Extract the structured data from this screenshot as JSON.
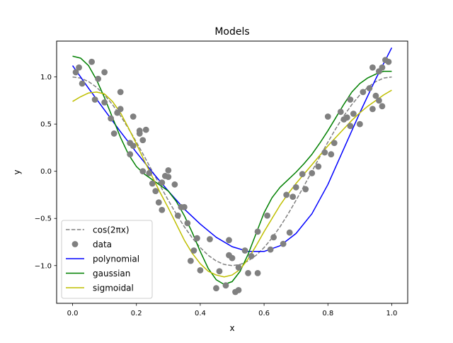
{
  "chart_data": {
    "type": "line",
    "title": "Models",
    "xlabel": "x",
    "ylabel": "y",
    "xlim": [
      -0.05,
      1.05
    ],
    "ylim": [
      -1.4,
      1.38
    ],
    "xticks": [
      0.0,
      0.2,
      0.4,
      0.6,
      0.8,
      1.0
    ],
    "xtick_labels": [
      "0.0",
      "0.2",
      "0.4",
      "0.6",
      "0.8",
      "1.0"
    ],
    "yticks": [
      -1.0,
      -0.5,
      0.0,
      0.5,
      1.0
    ],
    "ytick_labels": [
      "−1.0",
      "−0.5",
      "0.0",
      "0.5",
      "1.0"
    ],
    "grid": false,
    "legend_position": "lower-left",
    "legend": [
      {
        "label": "cos(2πx)",
        "kind": "dashed",
        "color": "#808080"
      },
      {
        "label": "data",
        "kind": "marker",
        "color": "#808080"
      },
      {
        "label": "polynomial",
        "kind": "line",
        "color": "#0000ff"
      },
      {
        "label": "gaussian",
        "kind": "line",
        "color": "#008000"
      },
      {
        "label": "sigmoidal",
        "kind": "line",
        "color": "#bfbf00"
      }
    ],
    "scatter": {
      "name": "data",
      "color": "#808080",
      "points": [
        [
          0.01,
          1.05
        ],
        [
          0.02,
          1.1
        ],
        [
          0.03,
          0.93
        ],
        [
          0.06,
          1.16
        ],
        [
          0.07,
          0.76
        ],
        [
          0.08,
          0.98
        ],
        [
          0.1,
          1.05
        ],
        [
          0.1,
          0.73
        ],
        [
          0.12,
          0.56
        ],
        [
          0.13,
          0.4
        ],
        [
          0.14,
          0.62
        ],
        [
          0.15,
          0.84
        ],
        [
          0.15,
          0.66
        ],
        [
          0.18,
          0.18
        ],
        [
          0.18,
          0.3
        ],
        [
          0.19,
          0.58
        ],
        [
          0.19,
          0.27
        ],
        [
          0.21,
          0.43
        ],
        [
          0.21,
          0.4
        ],
        [
          0.22,
          0.33
        ],
        [
          0.22,
          0.0
        ],
        [
          0.23,
          0.44
        ],
        [
          0.24,
          -0.02
        ],
        [
          0.25,
          -0.13
        ],
        [
          0.26,
          -0.21
        ],
        [
          0.27,
          -0.33
        ],
        [
          0.28,
          -0.41
        ],
        [
          0.28,
          -0.12
        ],
        [
          0.29,
          -0.05
        ],
        [
          0.3,
          0.01
        ],
        [
          0.3,
          -0.06
        ],
        [
          0.32,
          -0.14
        ],
        [
          0.33,
          -0.47
        ],
        [
          0.34,
          -0.38
        ],
        [
          0.35,
          -0.38
        ],
        [
          0.36,
          -0.55
        ],
        [
          0.37,
          -0.95
        ],
        [
          0.38,
          -0.84
        ],
        [
          0.39,
          -0.71
        ],
        [
          0.4,
          -1.05
        ],
        [
          0.43,
          -0.72
        ],
        [
          0.45,
          -1.24
        ],
        [
          0.46,
          -1.06
        ],
        [
          0.48,
          -1.21
        ],
        [
          0.49,
          -0.73
        ],
        [
          0.49,
          -0.89
        ],
        [
          0.5,
          -0.92
        ],
        [
          0.51,
          -1.28
        ],
        [
          0.52,
          -1.26
        ],
        [
          0.52,
          -1.02
        ],
        [
          0.54,
          -0.84
        ],
        [
          0.55,
          -1.08
        ],
        [
          0.56,
          -0.9
        ],
        [
          0.58,
          -1.08
        ],
        [
          0.58,
          -0.64
        ],
        [
          0.61,
          -0.47
        ],
        [
          0.62,
          -0.83
        ],
        [
          0.63,
          -0.7
        ],
        [
          0.66,
          -0.77
        ],
        [
          0.67,
          -0.25
        ],
        [
          0.68,
          -0.65
        ],
        [
          0.69,
          -0.27
        ],
        [
          0.7,
          -0.17
        ],
        [
          0.72,
          -0.03
        ],
        [
          0.73,
          -0.19
        ],
        [
          0.75,
          -0.02
        ],
        [
          0.77,
          0.05
        ],
        [
          0.79,
          0.2
        ],
        [
          0.8,
          0.58
        ],
        [
          0.81,
          0.18
        ],
        [
          0.82,
          0.3
        ],
        [
          0.84,
          0.63
        ],
        [
          0.85,
          0.55
        ],
        [
          0.86,
          0.57
        ],
        [
          0.87,
          0.48
        ],
        [
          0.87,
          0.76
        ],
        [
          0.88,
          0.61
        ],
        [
          0.9,
          0.5
        ],
        [
          0.91,
          0.84
        ],
        [
          0.93,
          0.88
        ],
        [
          0.94,
          0.66
        ],
        [
          0.94,
          1.1
        ],
        [
          0.95,
          0.8
        ],
        [
          0.96,
          1.06
        ],
        [
          0.96,
          0.75
        ],
        [
          0.97,
          0.69
        ],
        [
          0.97,
          1.1
        ],
        [
          0.98,
          1.18
        ],
        [
          0.99,
          1.16
        ]
      ]
    },
    "series": [
      {
        "name": "cos(2πx)",
        "style": "dashed",
        "color": "#808080",
        "x": [
          0.0,
          0.025,
          0.05,
          0.075,
          0.1,
          0.125,
          0.15,
          0.175,
          0.2,
          0.225,
          0.25,
          0.275,
          0.3,
          0.325,
          0.35,
          0.375,
          0.4,
          0.425,
          0.45,
          0.475,
          0.5,
          0.525,
          0.55,
          0.575,
          0.6,
          0.625,
          0.65,
          0.675,
          0.7,
          0.725,
          0.75,
          0.775,
          0.8,
          0.825,
          0.85,
          0.875,
          0.9,
          0.925,
          0.95,
          0.975,
          1.0
        ],
        "y": [
          1.0,
          0.988,
          0.951,
          0.891,
          0.809,
          0.707,
          0.588,
          0.454,
          0.309,
          0.156,
          0.0,
          -0.156,
          -0.309,
          -0.454,
          -0.588,
          -0.707,
          -0.809,
          -0.891,
          -0.951,
          -0.988,
          -1.0,
          -0.988,
          -0.951,
          -0.891,
          -0.809,
          -0.707,
          -0.588,
          -0.454,
          -0.309,
          -0.156,
          0.0,
          0.156,
          0.309,
          0.454,
          0.588,
          0.707,
          0.809,
          0.891,
          0.951,
          0.988,
          1.0
        ]
      },
      {
        "name": "polynomial",
        "style": "solid",
        "color": "#0000ff",
        "x": [
          0.0,
          0.05,
          0.1,
          0.15,
          0.2,
          0.25,
          0.3,
          0.35,
          0.4,
          0.45,
          0.5,
          0.55,
          0.6,
          0.65,
          0.7,
          0.75,
          0.8,
          0.85,
          0.9,
          0.95,
          1.0
        ],
        "y": [
          1.12,
          0.88,
          0.65,
          0.42,
          0.2,
          -0.01,
          -0.21,
          -0.4,
          -0.56,
          -0.7,
          -0.8,
          -0.85,
          -0.85,
          -0.79,
          -0.66,
          -0.45,
          -0.14,
          0.24,
          0.62,
          0.98,
          1.31
        ]
      },
      {
        "name": "gaussian",
        "style": "solid",
        "color": "#008000",
        "x": [
          0.0,
          0.025,
          0.05,
          0.075,
          0.1,
          0.125,
          0.15,
          0.175,
          0.2,
          0.225,
          0.25,
          0.275,
          0.3,
          0.325,
          0.35,
          0.375,
          0.4,
          0.425,
          0.45,
          0.475,
          0.5,
          0.525,
          0.55,
          0.575,
          0.6,
          0.625,
          0.65,
          0.675,
          0.7,
          0.725,
          0.75,
          0.775,
          0.8,
          0.825,
          0.85,
          0.875,
          0.9,
          0.925,
          0.95,
          0.975,
          1.0
        ],
        "y": [
          1.22,
          1.2,
          1.12,
          0.97,
          0.78,
          0.57,
          0.36,
          0.18,
          0.05,
          -0.03,
          -0.09,
          -0.15,
          -0.21,
          -0.32,
          -0.47,
          -0.65,
          -0.85,
          -1.03,
          -1.15,
          -1.2,
          -1.17,
          -1.06,
          -0.88,
          -0.66,
          -0.44,
          -0.28,
          -0.17,
          -0.09,
          -0.01,
          0.08,
          0.18,
          0.3,
          0.43,
          0.57,
          0.71,
          0.84,
          0.93,
          0.99,
          1.03,
          1.06,
          1.06
        ]
      },
      {
        "name": "sigmoidal",
        "style": "solid",
        "color": "#bfbf00",
        "x": [
          0.0,
          0.025,
          0.05,
          0.075,
          0.1,
          0.125,
          0.15,
          0.175,
          0.2,
          0.225,
          0.25,
          0.275,
          0.3,
          0.325,
          0.35,
          0.375,
          0.4,
          0.425,
          0.45,
          0.475,
          0.5,
          0.525,
          0.55,
          0.575,
          0.6,
          0.625,
          0.65,
          0.675,
          0.7,
          0.725,
          0.75,
          0.775,
          0.8,
          0.825,
          0.85,
          0.875,
          0.9,
          0.925,
          0.95,
          0.975,
          1.0
        ],
        "y": [
          0.74,
          0.79,
          0.83,
          0.84,
          0.82,
          0.74,
          0.62,
          0.46,
          0.29,
          0.11,
          -0.06,
          -0.23,
          -0.39,
          -0.56,
          -0.73,
          -0.87,
          -0.98,
          -1.06,
          -1.1,
          -1.12,
          -1.1,
          -1.04,
          -0.93,
          -0.79,
          -0.64,
          -0.5,
          -0.36,
          -0.24,
          -0.13,
          -0.03,
          0.07,
          0.17,
          0.27,
          0.36,
          0.45,
          0.54,
          0.62,
          0.69,
          0.75,
          0.81,
          0.86
        ]
      }
    ]
  }
}
